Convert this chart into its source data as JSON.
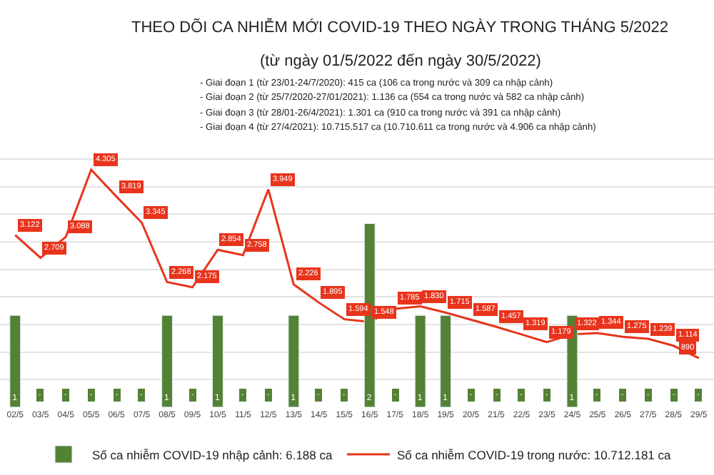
{
  "chart_data": {
    "type": "bar",
    "title": "THEO DÕI CA NHIỄM MỚI COVID-19 THEO NGÀY TRONG THÁNG 5/2022",
    "subtitle": "(từ ngày 01/5/2022 đến ngày 30/5/2022)",
    "annotations": [
      "- Giai đoạn 1 (từ 23/01-24/7/2020): 415 ca (106 ca trong nước và 309 ca nhập cảnh)",
      "- Giai đoạn 2 (từ 25/7/2020-27/01/2021): 1.136 ca (554 ca trong nước và 582 ca nhập cảnh)",
      "- Giai đoạn 3 (từ 28/01-26/4/2021): 1.301 ca (910 ca trong nước và 391 ca nhập cảnh)",
      "- Giai đoạn 4 (từ 27/4/2021): 10.715.517 ca (10.710.611 ca trong nước và 4.906 ca nhập cảnh)"
    ],
    "categories": [
      "02/5",
      "03/5",
      "04/5",
      "05/5",
      "06/5",
      "07/5",
      "08/5",
      "09/5",
      "10/5",
      "11/5",
      "12/5",
      "13/5",
      "14/5",
      "15/5",
      "16/5",
      "17/5",
      "18/5",
      "19/5",
      "20/5",
      "21/5",
      "22/5",
      "23/5",
      "24/5",
      "25/5",
      "26/5",
      "27/5",
      "28/5",
      "29/5"
    ],
    "series": [
      {
        "name": "Số ca nhiễm COVID-19 nhập cảnh: 6.188 ca",
        "axis": "y2",
        "color": "#548235",
        "values": [
          1,
          null,
          null,
          null,
          null,
          null,
          1,
          null,
          1,
          null,
          null,
          1,
          null,
          null,
          2,
          null,
          1,
          1,
          null,
          null,
          null,
          null,
          1,
          null,
          null,
          null,
          null,
          null
        ],
        "value_labels": [
          "1",
          "-",
          "-",
          "-",
          "-",
          "-",
          "1",
          "-",
          "1",
          "-",
          "-",
          "1",
          "-",
          "-",
          "2",
          "-",
          "1",
          "1",
          "-",
          "-",
          "-",
          "-",
          "1",
          "-",
          "-",
          "-",
          "-",
          "-"
        ]
      },
      {
        "name": "Số ca nhiễm COVID-19 trong nước: 10.712.181 ca",
        "type": "line",
        "color": "#e8341c",
        "values": [
          3122,
          2709,
          3088,
          4305,
          3819,
          3345,
          2268,
          2175,
          2854,
          2758,
          3949,
          2226,
          1895,
          1594,
          1548,
          1785,
          1830,
          1715,
          1587,
          1457,
          1319,
          1179,
          1322,
          1344,
          1275,
          1239,
          1114,
          890
        ],
        "value_labels": [
          "3.122",
          "2.709",
          "3.088",
          "4.305",
          "3.819",
          "3.345",
          "2.268",
          "2.175",
          "2.854",
          "2.758",
          "3.949",
          "2.226",
          "1.895",
          "1.594",
          "1.548",
          "1.785",
          "1.830",
          "1.715",
          "1.587",
          "1.457",
          "1.319",
          "1.179",
          "1.322",
          "1.344",
          "1.275",
          "1.239",
          "1.114",
          "890"
        ]
      }
    ],
    "yticks": [
      {
        "value": 500,
        "label": null
      },
      {
        "value": 1000,
        "label": null
      },
      {
        "value": 1500,
        "label": null
      },
      {
        "value": 2000,
        "label": null
      },
      {
        "value": 2500,
        "label": null
      },
      {
        "value": 3000,
        "label": null
      },
      {
        "value": 3500,
        "label": null
      },
      {
        "value": 4000,
        "label": null
      },
      {
        "value": 4500,
        "label": null
      }
    ],
    "grid": "y",
    "legend": "bottom",
    "tick_labels": "x"
  }
}
